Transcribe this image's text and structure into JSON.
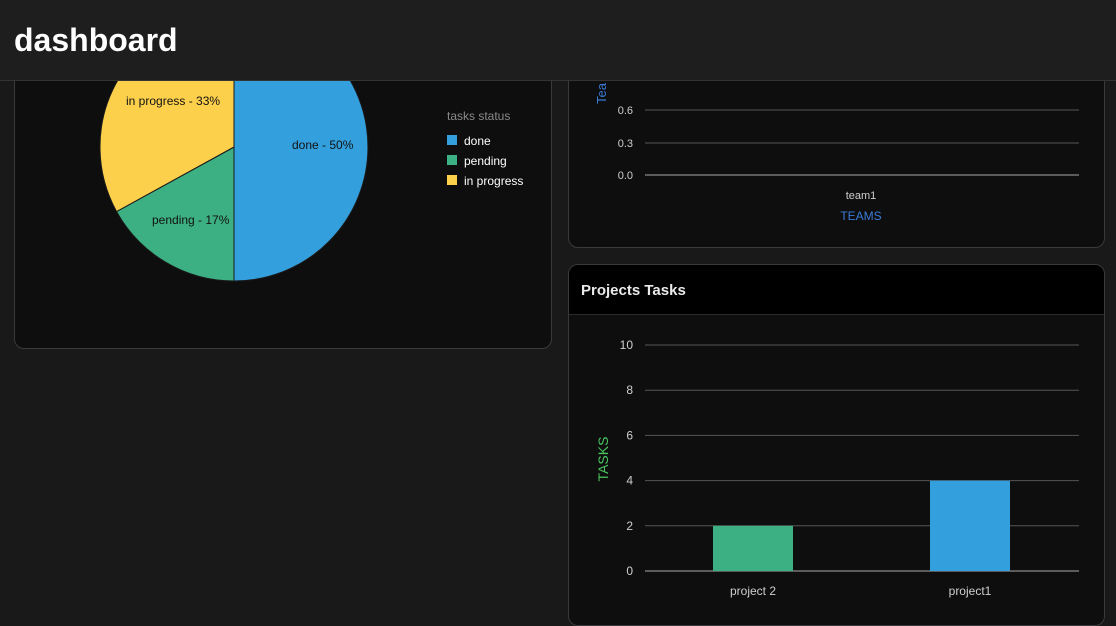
{
  "header": {
    "title": "dashboard"
  },
  "pie_chart": {
    "legend_title": "tasks status",
    "legend": [
      {
        "label": "done",
        "color": "#349fdd"
      },
      {
        "label": "pending",
        "color": "#3cb083"
      },
      {
        "label": "in progress",
        "color": "#fdd04c"
      }
    ],
    "slice_labels": [
      "done - 50%",
      "pending - 17%",
      "in progress - 33%"
    ]
  },
  "teams_chart": {
    "ylabel_partial": "Tea",
    "xlabel": "TEAMS",
    "ytick_labels": [
      "0.6",
      "0.3",
      "0.0"
    ],
    "xtick_labels": [
      "team1"
    ]
  },
  "projects_card": {
    "title": "Projects Tasks",
    "ylabel": "TASKS",
    "ytick_labels": [
      "10",
      "8",
      "6",
      "4",
      "2",
      "0"
    ],
    "xtick_labels": [
      "project 2",
      "project1"
    ]
  },
  "chart_data": [
    {
      "type": "pie",
      "title": "",
      "legend_title": "tasks status",
      "categories": [
        "done",
        "pending",
        "in progress"
      ],
      "values": [
        50,
        17,
        33
      ],
      "colors": [
        "#349fdd",
        "#3cb083",
        "#fdd04c"
      ],
      "legend_position": "right"
    },
    {
      "type": "bar",
      "title": "",
      "xlabel": "TEAMS",
      "ylabel": "Tea",
      "categories": [
        "team1"
      ],
      "values": [
        0
      ],
      "yticks": [
        0.0,
        0.3,
        0.6
      ],
      "grid": true
    },
    {
      "type": "bar",
      "title": "Projects Tasks",
      "xlabel": "",
      "ylabel": "TASKS",
      "categories": [
        "project 2",
        "project1"
      ],
      "values": [
        2,
        4
      ],
      "colors": [
        "#3cb083",
        "#349fdd"
      ],
      "ylim": [
        0,
        10
      ],
      "yticks": [
        0,
        2,
        4,
        6,
        8,
        10
      ],
      "grid": true
    }
  ],
  "colors": {
    "background": "#19191a",
    "card": "#0e0e0f",
    "blue": "#349fdd",
    "green": "#3cb083",
    "yellow": "#fdd04c",
    "axis_blue_label": "#3a7bd5",
    "axis_green_label": "#49c45e"
  }
}
